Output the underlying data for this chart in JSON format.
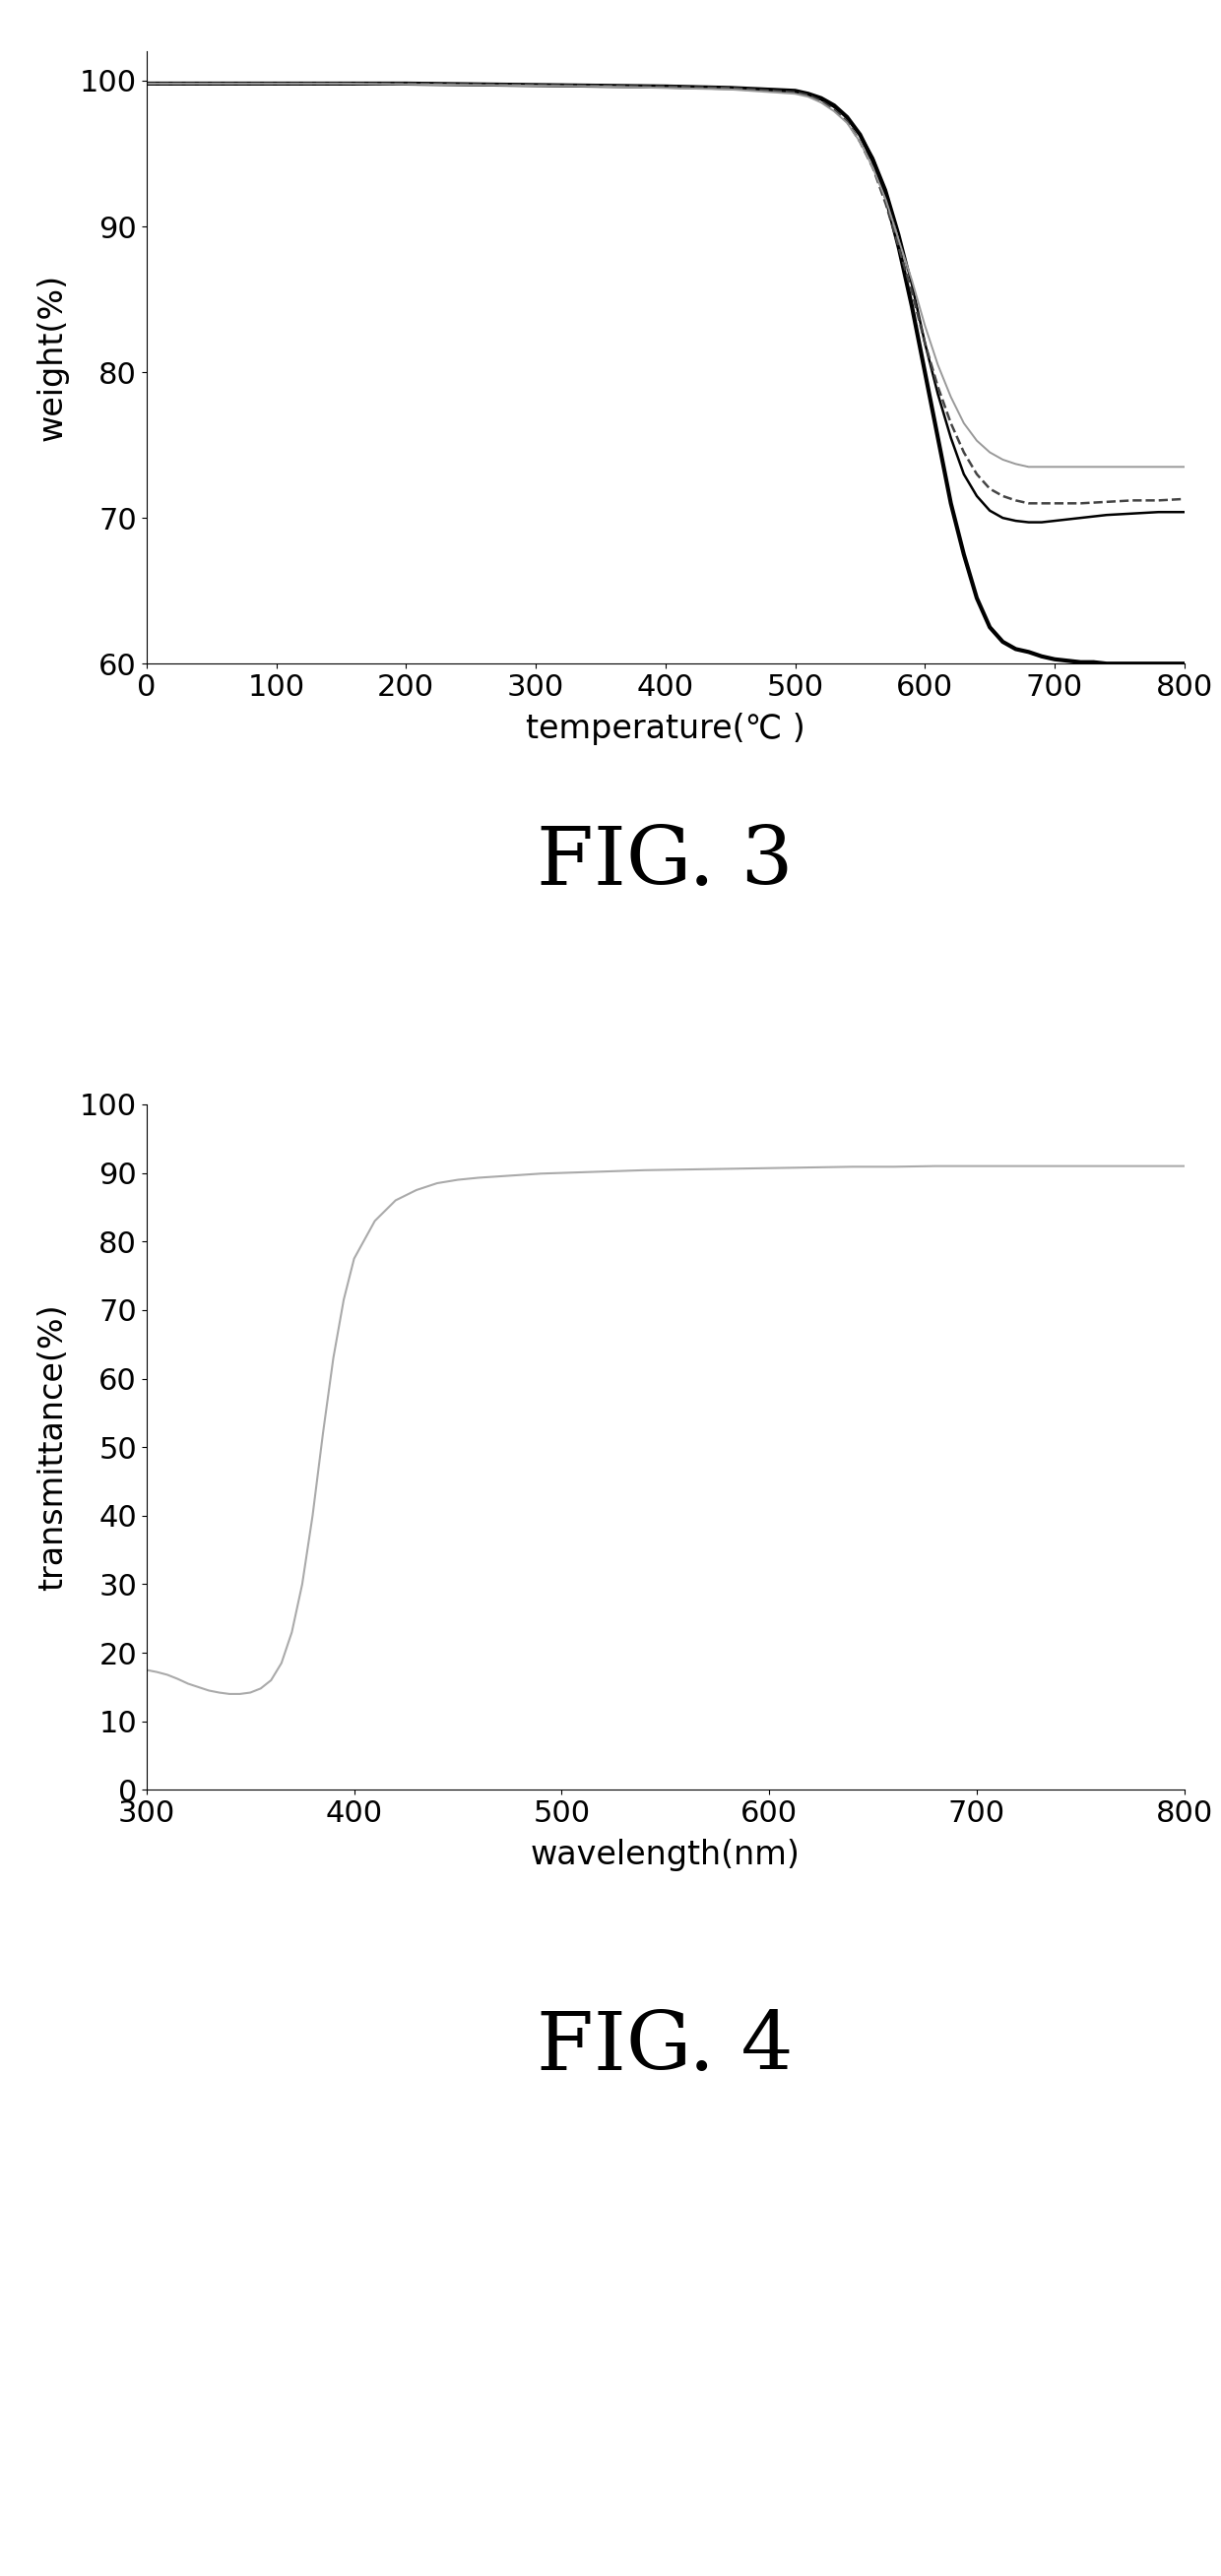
{
  "fig3": {
    "title": "FIG. 3",
    "xlabel": "temperature(℃ )",
    "ylabel": "weight(%)",
    "xlim": [
      0,
      800
    ],
    "ylim": [
      60,
      102
    ],
    "xticks": [
      0,
      100,
      200,
      300,
      400,
      500,
      600,
      700,
      800
    ],
    "yticks": [
      60,
      70,
      80,
      90,
      100
    ],
    "lines": [
      {
        "style": "solid",
        "color": "#000000",
        "linewidth": 3.0,
        "x": [
          0,
          50,
          100,
          150,
          200,
          250,
          300,
          350,
          400,
          450,
          500,
          510,
          520,
          530,
          540,
          550,
          560,
          570,
          580,
          590,
          600,
          610,
          620,
          630,
          640,
          650,
          660,
          670,
          680,
          690,
          700,
          710,
          720,
          730,
          740,
          750,
          760,
          770,
          780,
          790,
          800
        ],
        "y": [
          99.8,
          99.8,
          99.8,
          99.8,
          99.8,
          99.75,
          99.7,
          99.65,
          99.6,
          99.5,
          99.3,
          99.1,
          98.8,
          98.3,
          97.5,
          96.3,
          94.5,
          92.0,
          88.5,
          84.5,
          80.0,
          75.5,
          71.0,
          67.5,
          64.5,
          62.5,
          61.5,
          61.0,
          60.8,
          60.5,
          60.3,
          60.2,
          60.1,
          60.1,
          60.0,
          60.0,
          60.0,
          60.0,
          60.0,
          60.0,
          60.0
        ]
      },
      {
        "style": "solid",
        "color": "#000000",
        "linewidth": 1.8,
        "x": [
          0,
          50,
          100,
          150,
          200,
          250,
          300,
          350,
          400,
          450,
          500,
          510,
          520,
          530,
          540,
          550,
          560,
          570,
          580,
          590,
          600,
          610,
          620,
          630,
          640,
          650,
          660,
          670,
          680,
          690,
          700,
          720,
          740,
          760,
          780,
          800
        ],
        "y": [
          99.8,
          99.8,
          99.8,
          99.8,
          99.8,
          99.75,
          99.7,
          99.65,
          99.6,
          99.5,
          99.2,
          99.0,
          98.7,
          98.2,
          97.5,
          96.3,
          94.7,
          92.5,
          89.5,
          86.0,
          82.0,
          78.5,
          75.5,
          73.0,
          71.5,
          70.5,
          70.0,
          69.8,
          69.7,
          69.7,
          69.8,
          70.0,
          70.2,
          70.3,
          70.4,
          70.4
        ]
      },
      {
        "style": "dashed",
        "color": "#444444",
        "linewidth": 1.8,
        "x": [
          0,
          50,
          100,
          150,
          200,
          250,
          300,
          350,
          400,
          450,
          500,
          510,
          520,
          530,
          540,
          550,
          560,
          570,
          580,
          590,
          600,
          610,
          620,
          630,
          640,
          650,
          660,
          670,
          680,
          690,
          700,
          720,
          740,
          760,
          780,
          800
        ],
        "y": [
          99.8,
          99.8,
          99.8,
          99.8,
          99.8,
          99.75,
          99.7,
          99.65,
          99.6,
          99.5,
          99.2,
          99.0,
          98.6,
          98.0,
          97.2,
          95.8,
          94.0,
          91.5,
          88.5,
          85.5,
          82.0,
          79.0,
          76.5,
          74.5,
          73.0,
          72.0,
          71.5,
          71.2,
          71.0,
          71.0,
          71.0,
          71.0,
          71.1,
          71.2,
          71.2,
          71.3
        ]
      },
      {
        "style": "solid",
        "color": "#999999",
        "linewidth": 1.4,
        "x": [
          0,
          50,
          100,
          150,
          200,
          250,
          300,
          350,
          400,
          450,
          500,
          510,
          520,
          530,
          540,
          550,
          560,
          570,
          580,
          590,
          600,
          610,
          620,
          630,
          640,
          650,
          660,
          670,
          680,
          690,
          700,
          720,
          740,
          760,
          780,
          800
        ],
        "y": [
          99.8,
          99.8,
          99.8,
          99.8,
          99.75,
          99.7,
          99.65,
          99.6,
          99.5,
          99.4,
          99.1,
          98.9,
          98.5,
          97.9,
          97.1,
          95.8,
          94.0,
          91.8,
          89.0,
          86.3,
          83.2,
          80.5,
          78.3,
          76.5,
          75.3,
          74.5,
          74.0,
          73.7,
          73.5,
          73.5,
          73.5,
          73.5,
          73.5,
          73.5,
          73.5,
          73.5
        ]
      }
    ]
  },
  "fig4": {
    "title": "FIG. 4",
    "xlabel": "wavelength(nm)",
    "ylabel": "transmittance(%)",
    "xlim": [
      300,
      800
    ],
    "ylim": [
      0,
      100
    ],
    "xticks": [
      300,
      400,
      500,
      600,
      700,
      800
    ],
    "yticks": [
      0,
      10,
      20,
      30,
      40,
      50,
      60,
      70,
      80,
      90,
      100
    ],
    "line": {
      "color": "#aaaaaa",
      "linewidth": 1.5,
      "x": [
        300,
        305,
        310,
        315,
        320,
        325,
        330,
        335,
        340,
        345,
        350,
        355,
        360,
        365,
        370,
        375,
        380,
        385,
        390,
        395,
        400,
        410,
        420,
        430,
        440,
        450,
        460,
        470,
        480,
        490,
        500,
        520,
        540,
        560,
        580,
        600,
        620,
        640,
        660,
        680,
        700,
        720,
        740,
        760,
        780,
        800
      ],
      "y": [
        17.5,
        17.2,
        16.8,
        16.2,
        15.5,
        15.0,
        14.5,
        14.2,
        14.0,
        14.0,
        14.2,
        14.8,
        16.0,
        18.5,
        23.0,
        30.0,
        40.0,
        52.0,
        63.0,
        71.5,
        77.5,
        83.0,
        86.0,
        87.5,
        88.5,
        89.0,
        89.3,
        89.5,
        89.7,
        89.9,
        90.0,
        90.2,
        90.4,
        90.5,
        90.6,
        90.7,
        90.8,
        90.9,
        90.9,
        91.0,
        91.0,
        91.0,
        91.0,
        91.0,
        91.0,
        91.0
      ]
    }
  },
  "background_color": "#ffffff",
  "title_fontsize": 60,
  "label_fontsize": 24,
  "tick_fontsize": 22,
  "fig_title_font": "serif"
}
